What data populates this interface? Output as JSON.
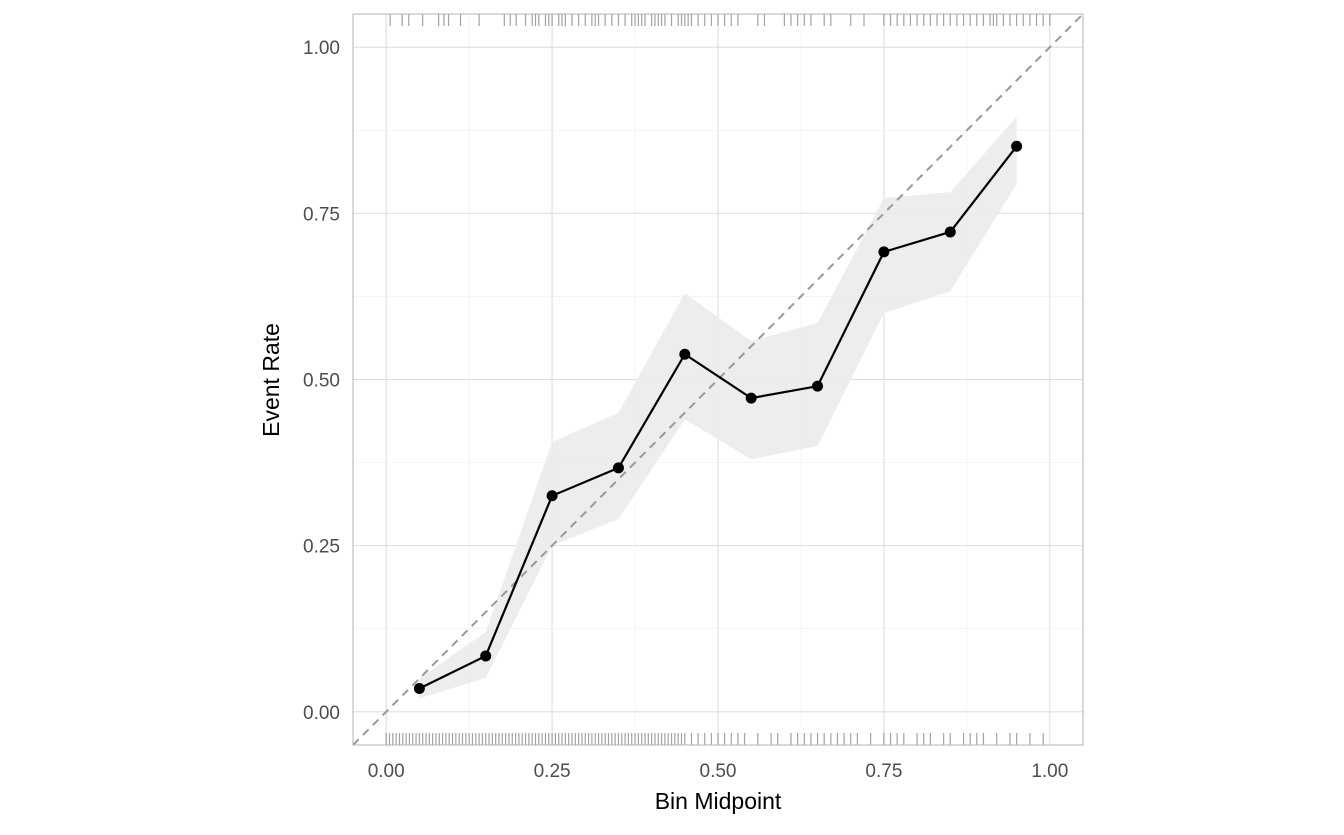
{
  "chart_data": {
    "type": "line",
    "title": "",
    "xlabel": "Bin Midpoint",
    "ylabel": "Event Rate",
    "xlim": [
      -0.05,
      1.05
    ],
    "ylim": [
      -0.05,
      1.05
    ],
    "xticks": [
      "0.00",
      "0.25",
      "0.50",
      "0.75",
      "1.00"
    ],
    "yticks": [
      "0.00",
      "0.25",
      "0.50",
      "0.75",
      "1.00"
    ],
    "grid": true,
    "reference_line": {
      "style": "dashed",
      "slope": 1,
      "intercept": 0,
      "color": "#999999"
    },
    "series": [
      {
        "x": [
          0.05,
          0.15,
          0.25,
          0.35,
          0.45,
          0.55,
          0.65,
          0.75,
          0.85,
          0.95
        ],
        "y": [
          0.035,
          0.084,
          0.325,
          0.367,
          0.538,
          0.472,
          0.49,
          0.692,
          0.722,
          0.851
        ],
        "lower": [
          0.02,
          0.051,
          0.25,
          0.29,
          0.44,
          0.38,
          0.4,
          0.6,
          0.633,
          0.794
        ],
        "upper": [
          0.05,
          0.12,
          0.406,
          0.45,
          0.63,
          0.558,
          0.585,
          0.773,
          0.782,
          0.895
        ],
        "color": "#000000",
        "ribbon_color": "#ebebeb"
      }
    ],
    "rug_top": [
      0.006,
      0.024,
      0.034,
      0.055,
      0.079,
      0.087,
      0.094,
      0.112,
      0.14,
      0.178,
      0.187,
      0.196,
      0.21,
      0.22,
      0.225,
      0.23,
      0.24,
      0.245,
      0.25,
      0.26,
      0.265,
      0.27,
      0.28,
      0.29,
      0.3,
      0.31,
      0.315,
      0.32,
      0.33,
      0.34,
      0.35,
      0.36,
      0.37,
      0.375,
      0.38,
      0.385,
      0.39,
      0.4,
      0.405,
      0.41,
      0.415,
      0.42,
      0.43,
      0.44,
      0.445,
      0.45,
      0.455,
      0.46,
      0.47,
      0.48,
      0.49,
      0.5,
      0.51,
      0.52,
      0.53,
      0.56,
      0.57,
      0.6,
      0.61,
      0.62,
      0.63,
      0.64,
      0.66,
      0.67,
      0.7,
      0.72,
      0.75,
      0.76,
      0.77,
      0.78,
      0.79,
      0.8,
      0.81,
      0.82,
      0.83,
      0.84,
      0.85,
      0.86,
      0.87,
      0.88,
      0.89,
      0.9,
      0.91,
      0.915,
      0.92,
      0.93,
      0.94,
      0.95,
      0.96,
      0.97,
      0.98,
      0.99,
      1.0
    ],
    "rug_bottom": [
      0.0,
      0.005,
      0.01,
      0.015,
      0.02,
      0.025,
      0.03,
      0.035,
      0.04,
      0.045,
      0.05,
      0.055,
      0.06,
      0.065,
      0.07,
      0.075,
      0.08,
      0.085,
      0.09,
      0.095,
      0.1,
      0.105,
      0.11,
      0.115,
      0.12,
      0.125,
      0.13,
      0.135,
      0.14,
      0.145,
      0.15,
      0.155,
      0.16,
      0.165,
      0.17,
      0.175,
      0.18,
      0.185,
      0.19,
      0.195,
      0.2,
      0.205,
      0.21,
      0.215,
      0.22,
      0.225,
      0.23,
      0.235,
      0.24,
      0.245,
      0.25,
      0.255,
      0.26,
      0.265,
      0.27,
      0.275,
      0.28,
      0.285,
      0.29,
      0.295,
      0.3,
      0.305,
      0.31,
      0.315,
      0.32,
      0.325,
      0.33,
      0.335,
      0.34,
      0.345,
      0.35,
      0.355,
      0.36,
      0.365,
      0.37,
      0.375,
      0.38,
      0.385,
      0.39,
      0.395,
      0.4,
      0.405,
      0.41,
      0.415,
      0.42,
      0.425,
      0.43,
      0.435,
      0.44,
      0.445,
      0.45,
      0.46,
      0.47,
      0.48,
      0.49,
      0.5,
      0.51,
      0.52,
      0.53,
      0.54,
      0.56,
      0.58,
      0.59,
      0.61,
      0.62,
      0.63,
      0.64,
      0.65,
      0.66,
      0.67,
      0.68,
      0.69,
      0.7,
      0.71,
      0.73,
      0.75,
      0.76,
      0.77,
      0.78,
      0.8,
      0.81,
      0.82,
      0.84,
      0.85,
      0.87,
      0.88,
      0.89,
      0.9,
      0.92,
      0.94,
      0.95,
      0.97,
      0.99
    ],
    "rug_color": "#8c8c8c"
  }
}
